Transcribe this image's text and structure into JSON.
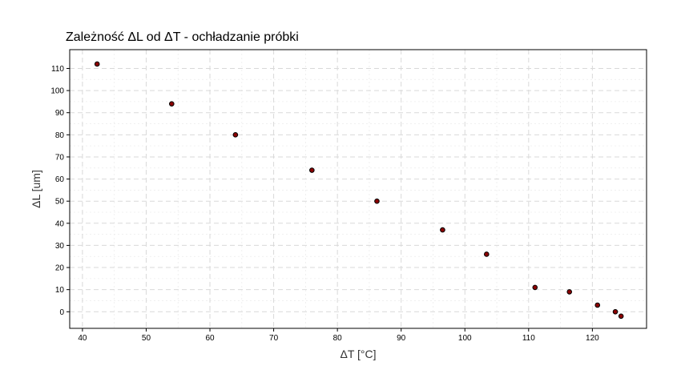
{
  "chart_data": {
    "type": "scatter",
    "title": "Zależność ΔL od ΔT - ochładzanie próbki",
    "xlabel": "ΔT [°C]",
    "ylabel": "ΔL [um]",
    "xlim": [
      38,
      128.5
    ],
    "ylim": [
      -7.5,
      118.5
    ],
    "xticks": [
      40,
      50,
      60,
      70,
      80,
      90,
      100,
      110,
      120
    ],
    "yticks": [
      0,
      10,
      20,
      30,
      40,
      50,
      60,
      70,
      80,
      90,
      100,
      110
    ],
    "grid": true,
    "point_color": "#8b0000",
    "series": [
      {
        "x": [
          42.3,
          54.0,
          64.0,
          76.0,
          86.2,
          96.5,
          103.4,
          111.0,
          116.4,
          120.8,
          123.6,
          124.5
        ],
        "y": [
          112,
          94,
          80,
          64,
          50,
          37,
          26,
          11,
          9,
          3,
          0,
          -2
        ]
      }
    ]
  }
}
